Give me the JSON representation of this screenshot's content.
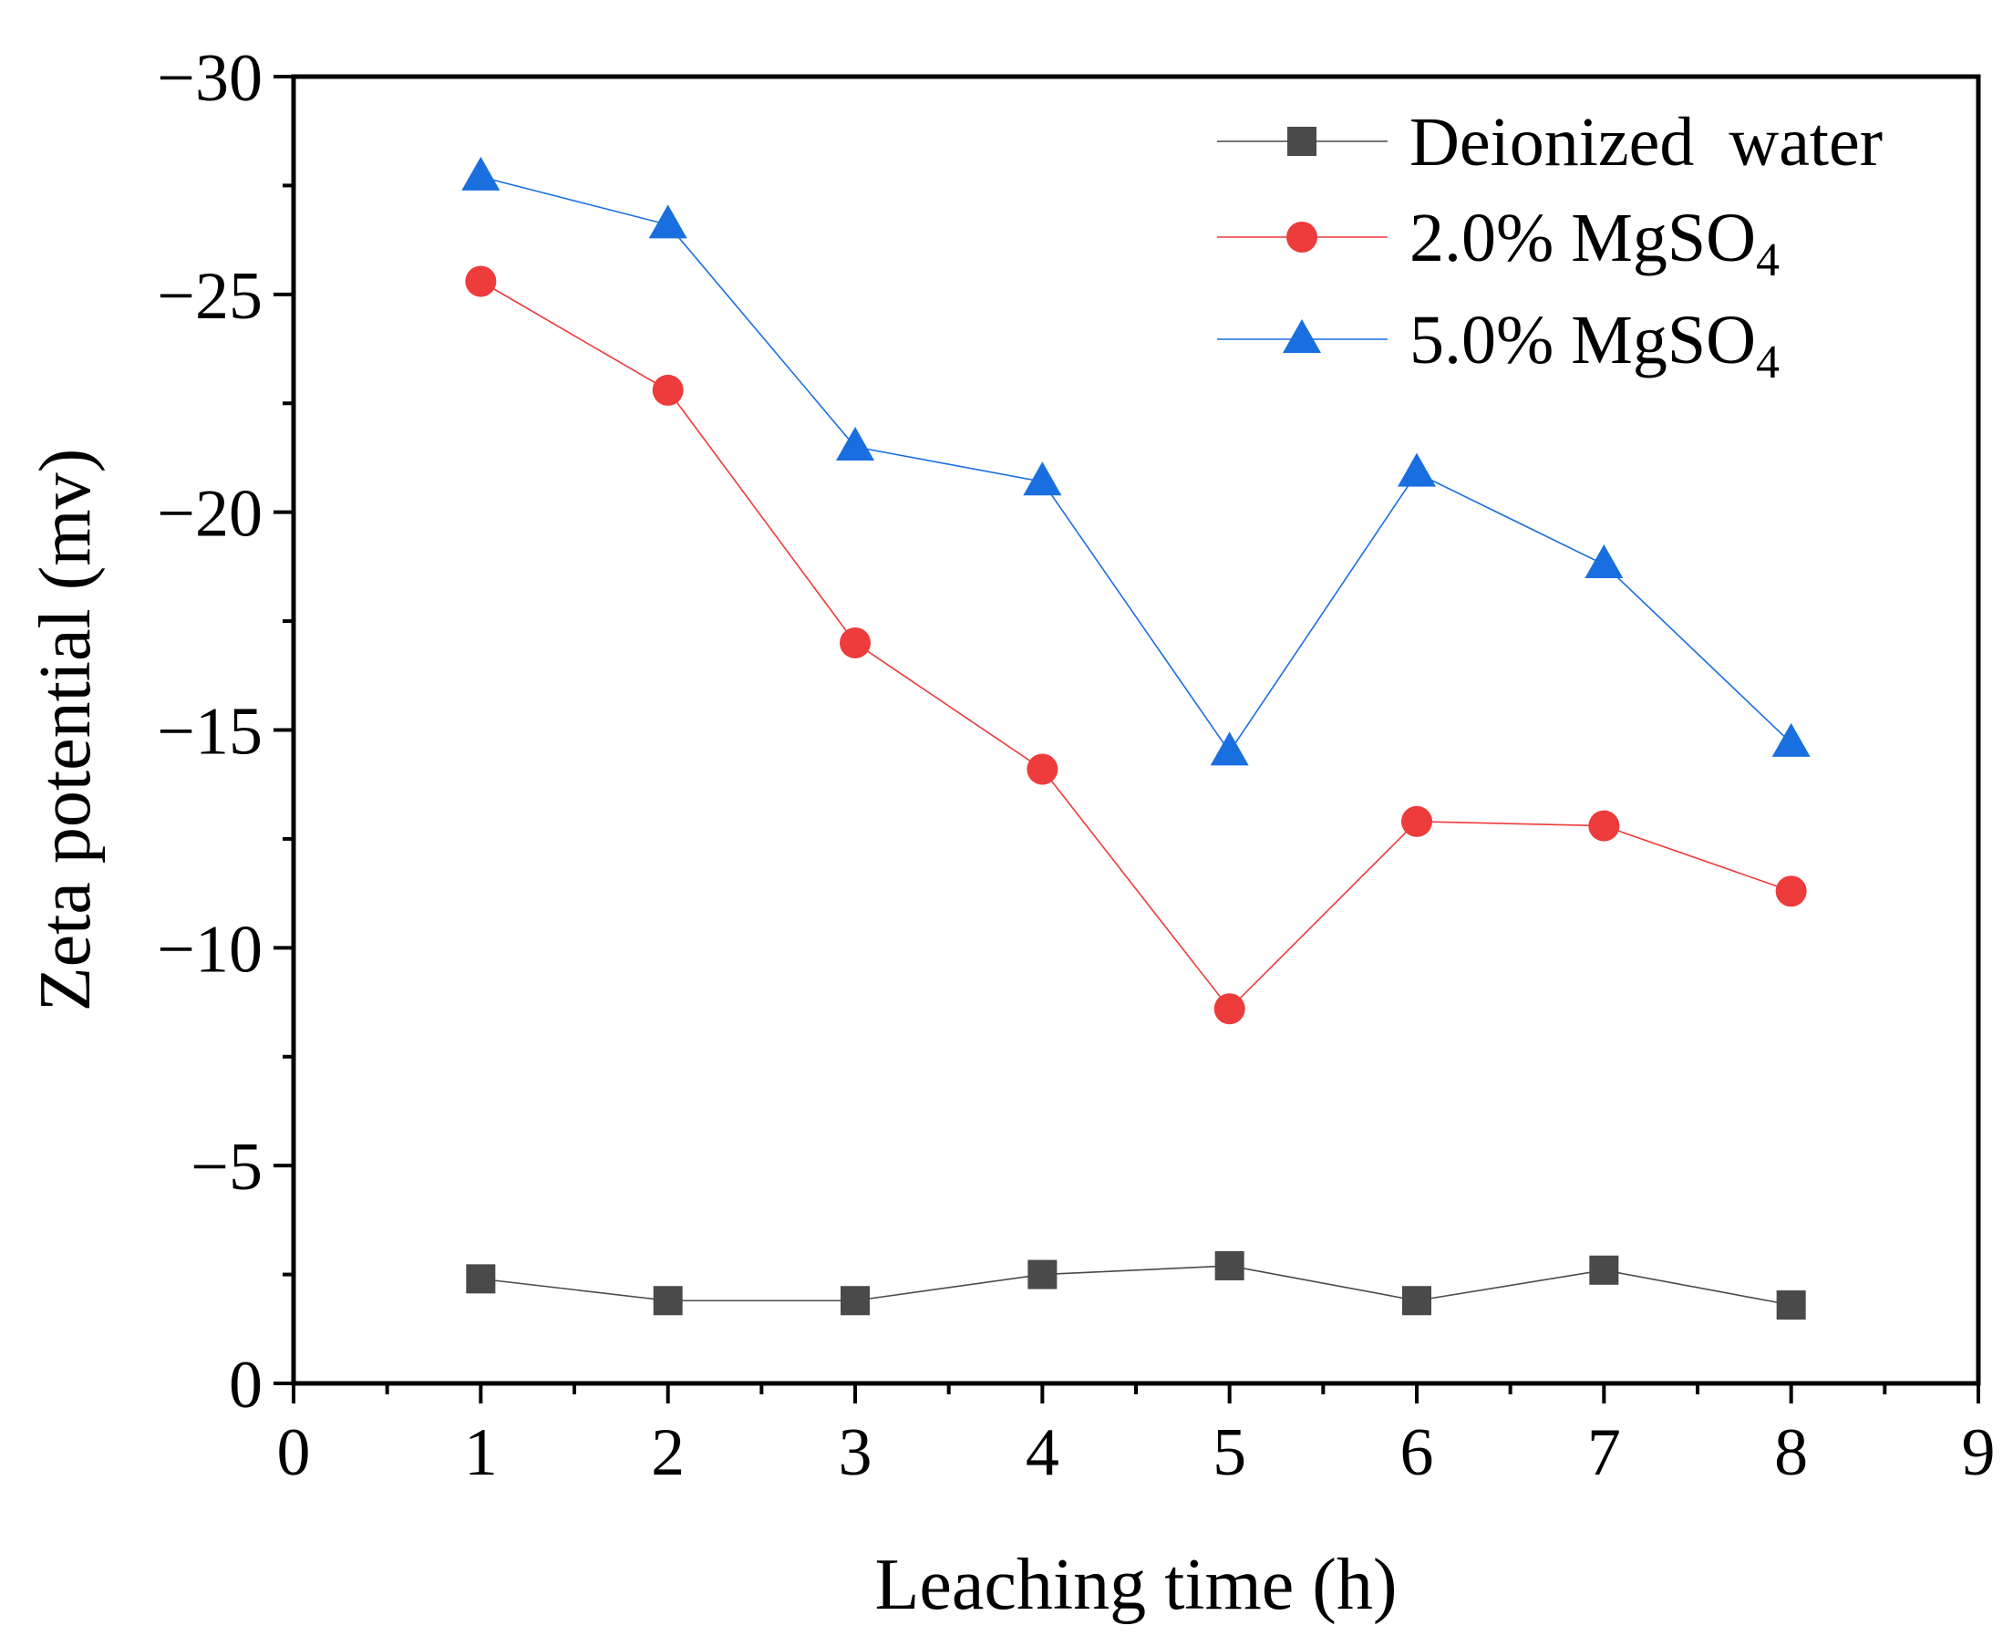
{
  "chart_data": {
    "type": "line",
    "title": "",
    "xlabel": "Leaching time (h)",
    "ylabel": "Zeta potential (mv)",
    "xlim": [
      0,
      9
    ],
    "ylim": [
      0,
      -30
    ],
    "y_axis_inverted": true,
    "xticks": [
      0,
      1,
      2,
      3,
      4,
      5,
      6,
      7,
      8,
      9
    ],
    "yticks": [
      0,
      -5,
      -10,
      -15,
      -20,
      -25,
      -30
    ],
    "xtick_labels": [
      "0",
      "1",
      "2",
      "3",
      "4",
      "5",
      "6",
      "7",
      "8",
      "9"
    ],
    "ytick_labels": [
      "0",
      "−5",
      "−10",
      "−15",
      "−20",
      "−25",
      "−30"
    ],
    "grid": false,
    "legend_position": "top-right",
    "x": [
      1,
      2,
      3,
      4,
      5,
      6,
      7,
      8
    ],
    "series": [
      {
        "name": "Deionized  water",
        "legend_main": "Deionized  water",
        "legend_sub": "",
        "marker": "square",
        "color": "#4a4a4a",
        "values": [
          -2.4,
          -1.9,
          -1.9,
          -2.5,
          -2.7,
          -1.9,
          -2.6,
          -1.8
        ]
      },
      {
        "name": "2.0% MgSO4",
        "legend_main": "2.0% MgSO",
        "legend_sub": "4",
        "marker": "circle",
        "color": "#ee3b3b",
        "values": [
          -25.3,
          -22.8,
          -17.0,
          -14.1,
          -8.6,
          -12.9,
          -12.8,
          -11.3
        ]
      },
      {
        "name": "5.0% MgSO4",
        "legend_main": "5.0% MgSO",
        "legend_sub": "4",
        "marker": "triangle",
        "color": "#1a6fe0",
        "values": [
          -27.7,
          -26.6,
          -21.5,
          -20.7,
          -14.5,
          -20.9,
          -18.8,
          -14.7
        ]
      }
    ]
  }
}
